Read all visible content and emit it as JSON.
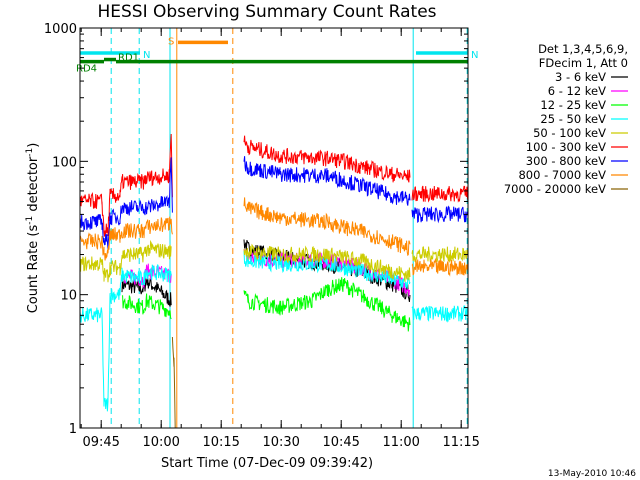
{
  "chart_data": {
    "type": "line",
    "title": "HESSI Observing Summary Count Rates",
    "xlabel": "Start Time (07-Dec-09 09:39:42)",
    "ylabel": "Count Rate (s",
    "ylabel_sup1": "-1",
    "ylabel_mid": " detector",
    "ylabel_sup2": "-1",
    "ylabel_end": ")",
    "x_unit": "minutes after 09:39:42",
    "xlim": [
      0,
      97
    ],
    "ylim": [
      1,
      1000
    ],
    "y_scale": "log",
    "x_ticks": [
      {
        "x": 5.3,
        "label": "09:45"
      },
      {
        "x": 20.3,
        "label": "10:00"
      },
      {
        "x": 35.3,
        "label": "10:15"
      },
      {
        "x": 50.3,
        "label": "10:30"
      },
      {
        "x": 65.3,
        "label": "10:45"
      },
      {
        "x": 80.3,
        "label": "11:00"
      },
      {
        "x": 95.3,
        "label": "11:15"
      }
    ],
    "y_ticks": [
      {
        "y": 1,
        "label": "1"
      },
      {
        "y": 10,
        "label": "10"
      },
      {
        "y": 100,
        "label": "100"
      },
      {
        "y": 1000,
        "label": "1000"
      }
    ],
    "legend_header": [
      "Det 1,3,4,5,6,9,",
      "FDecim 1, Att 0"
    ],
    "series": [
      {
        "name": "3 - 6 keV",
        "color": "#000000",
        "seg1": {
          "x": [
            0,
            10,
            10.5,
            16,
            16.5,
            22.8
          ],
          "y": [
            null,
            null,
            12,
            11,
            13,
            9
          ]
        },
        "seg2": {
          "x": [
            41,
            42,
            50,
            62,
            70,
            78,
            82.5
          ],
          "y": [
            25,
            22,
            19,
            17,
            15,
            12,
            10
          ]
        }
      },
      {
        "name": "6 - 12 keV",
        "color": "#ff00ff",
        "seg1": {
          "x": [
            10.5,
            16,
            16.5,
            22.8
          ],
          "y": [
            14,
            13,
            15,
            14
          ]
        },
        "seg2": {
          "x": [
            41,
            42,
            50,
            62,
            70,
            78,
            82.5
          ],
          "y": [
            20,
            19,
            18,
            18,
            16,
            13,
            11
          ]
        }
      },
      {
        "name": "12 - 25 keV",
        "color": "#00ff00",
        "seg1": {
          "x": [
            10.5,
            16,
            16.5,
            22.8
          ],
          "y": [
            9,
            8,
            9,
            7.5
          ]
        },
        "seg2": {
          "x": [
            41,
            42,
            50,
            58,
            62,
            66,
            70,
            78,
            82.5
          ],
          "y": [
            10,
            9,
            8,
            9,
            11,
            12,
            10,
            7,
            6
          ]
        }
      },
      {
        "name": "25 - 50 keV",
        "color": "#00ffff",
        "seg1": {
          "x": [
            0,
            5.5,
            6,
            7,
            7.5,
            10,
            10.5,
            16,
            16.5,
            22.8
          ],
          "y": [
            7,
            7,
            1.5,
            1.5,
            10,
            10,
            14,
            13,
            15,
            14
          ]
        },
        "seg2": {
          "x": [
            41,
            42,
            50,
            62,
            70,
            78,
            82.5
          ],
          "y": [
            19,
            18,
            17,
            17,
            15,
            13,
            12
          ]
        },
        "seg3": {
          "x": [
            83,
            97
          ],
          "y": [
            7.2,
            7.2
          ]
        }
      },
      {
        "name": "50 - 100 keV",
        "color": "#cccc00",
        "seg1": {
          "x": [
            0,
            5.5,
            6,
            7,
            7.5,
            10,
            10.5,
            16,
            16.5,
            22.8
          ],
          "y": [
            17,
            17,
            14,
            14,
            16,
            16,
            20,
            20,
            22,
            21
          ]
        },
        "seg2": {
          "x": [
            41,
            42,
            50,
            62,
            70,
            78,
            82.5
          ],
          "y": [
            22,
            21,
            20,
            20,
            18,
            15,
            14
          ]
        },
        "seg3": {
          "x": [
            83,
            97
          ],
          "y": [
            20,
            20
          ]
        }
      },
      {
        "name": "100 - 300 keV",
        "color": "#ff0000",
        "seg1": {
          "x": [
            0,
            5.5,
            6,
            7,
            7.5,
            10,
            10.5,
            16,
            16.5,
            22.3,
            22.8,
            23.1
          ],
          "y": [
            50,
            50,
            30,
            30,
            55,
            55,
            70,
            70,
            75,
            78,
            160,
            60
          ]
        },
        "seg2": {
          "x": [
            41,
            42,
            50,
            62,
            66,
            70,
            78,
            82.5
          ],
          "y": [
            140,
            130,
            110,
            105,
            100,
            92,
            80,
            76
          ]
        },
        "seg3": {
          "x": [
            83,
            97
          ],
          "y": [
            57,
            57
          ]
        }
      },
      {
        "name": "300 - 800 keV",
        "color": "#0000ff",
        "seg1": {
          "x": [
            0,
            5.5,
            6,
            7,
            7.5,
            10,
            10.5,
            16,
            16.5,
            22.3,
            22.8,
            23.1
          ],
          "y": [
            35,
            35,
            25,
            25,
            38,
            38,
            45,
            45,
            45,
            50,
            100,
            45
          ]
        },
        "seg2": {
          "x": [
            41,
            42,
            50,
            62,
            66,
            70,
            78,
            82.5
          ],
          "y": [
            100,
            90,
            80,
            78,
            72,
            66,
            55,
            52
          ]
        },
        "seg3": {
          "x": [
            83,
            97
          ],
          "y": [
            40,
            40
          ]
        }
      },
      {
        "name": "800 - 7000 keV",
        "color": "#ff8800",
        "seg1": {
          "x": [
            0,
            5.5,
            6,
            7,
            7.5,
            10,
            10.5,
            16,
            16.5,
            22.3,
            22.8,
            23.1
          ],
          "y": [
            25,
            25,
            20,
            20,
            28,
            28,
            30,
            30,
            32,
            34,
            40,
            28
          ]
        },
        "seg2": {
          "x": [
            41,
            42,
            50,
            62,
            66,
            70,
            78,
            82.5
          ],
          "y": [
            48,
            44,
            38,
            35,
            32,
            30,
            25,
            22
          ]
        },
        "seg3": {
          "x": [
            83,
            97
          ],
          "y": [
            16,
            16
          ]
        }
      },
      {
        "name": "7000 - 20000 keV",
        "color": "#8b6508",
        "seg1": {
          "x": [
            0,
            22.8,
            23.1,
            23.5,
            23.8
          ],
          "y": [
            null,
            null,
            5,
            3,
            1
          ]
        }
      }
    ],
    "attenuator_bars": [
      {
        "label": "N",
        "color": "#00e5ee",
        "x": [
          0,
          15
        ],
        "y": 650
      },
      {
        "label": "N",
        "color": "#00e5ee",
        "x": [
          84,
          97
        ],
        "y": 650
      },
      {
        "label": "S",
        "color": "#ff8800",
        "x": [
          24.5,
          37
        ],
        "y": 780
      },
      {
        "label": "",
        "color": "#008000",
        "x": [
          9,
          97
        ],
        "y": 560
      },
      {
        "label": "RD1",
        "color": "#008000",
        "x": [
          6,
          9
        ],
        "y": 580
      },
      {
        "label": "RD4",
        "color": "#008000",
        "x": [
          0,
          6
        ],
        "y": 560
      }
    ],
    "vlines": [
      {
        "x": 7.8,
        "color": "#00e5ee",
        "style": "dashed"
      },
      {
        "x": 14.8,
        "color": "#00e5ee",
        "style": "dashed"
      },
      {
        "x": 22.5,
        "color": "#00e5ee",
        "style": "solid"
      },
      {
        "x": 24.2,
        "color": "#ff8800",
        "style": "solid"
      },
      {
        "x": 38.2,
        "color": "#ff8800",
        "style": "dashed"
      },
      {
        "x": 83.3,
        "color": "#00e5ee",
        "style": "solid"
      },
      {
        "x": 96.8,
        "color": "#00e5ee",
        "style": "dashed"
      }
    ],
    "timestamp": "13-May-2010 10:46"
  }
}
